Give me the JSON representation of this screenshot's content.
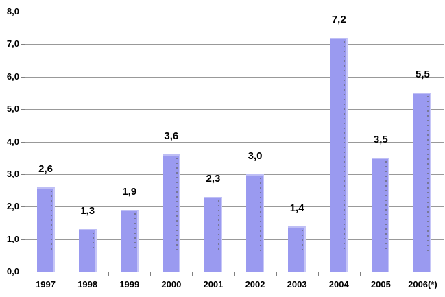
{
  "chart_data": {
    "type": "bar",
    "title": "",
    "xlabel": "",
    "ylabel": "",
    "legend": null,
    "grid": true,
    "decimal_separator": ",",
    "categories": [
      "1997",
      "1998",
      "1999",
      "2000",
      "2001",
      "2002",
      "2003",
      "2004",
      "2005",
      "2006(*)"
    ],
    "values": [
      2.6,
      1.3,
      1.9,
      3.6,
      2.3,
      3.0,
      1.4,
      7.2,
      3.5,
      5.5
    ],
    "value_labels": [
      "2,6",
      "1,3",
      "1,9",
      "3,6",
      "2,3",
      "3,0",
      "1,4",
      "7,2",
      "3,5",
      "5,5"
    ],
    "y_axis": {
      "min": 0,
      "max": 8,
      "step": 1,
      "tick_labels": [
        "0,0",
        "1,0",
        "2,0",
        "3,0",
        "4,0",
        "5,0",
        "6,0",
        "7,0",
        "8,0"
      ]
    },
    "colors": {
      "bar_fill": "#9a9af0",
      "bar_top_highlight": "#bebef5",
      "bar_right_highlight": "#c6c6f7",
      "gridline": "#999999",
      "axis": "#808080",
      "label_text": "#000000",
      "background": "#ffffff"
    }
  }
}
